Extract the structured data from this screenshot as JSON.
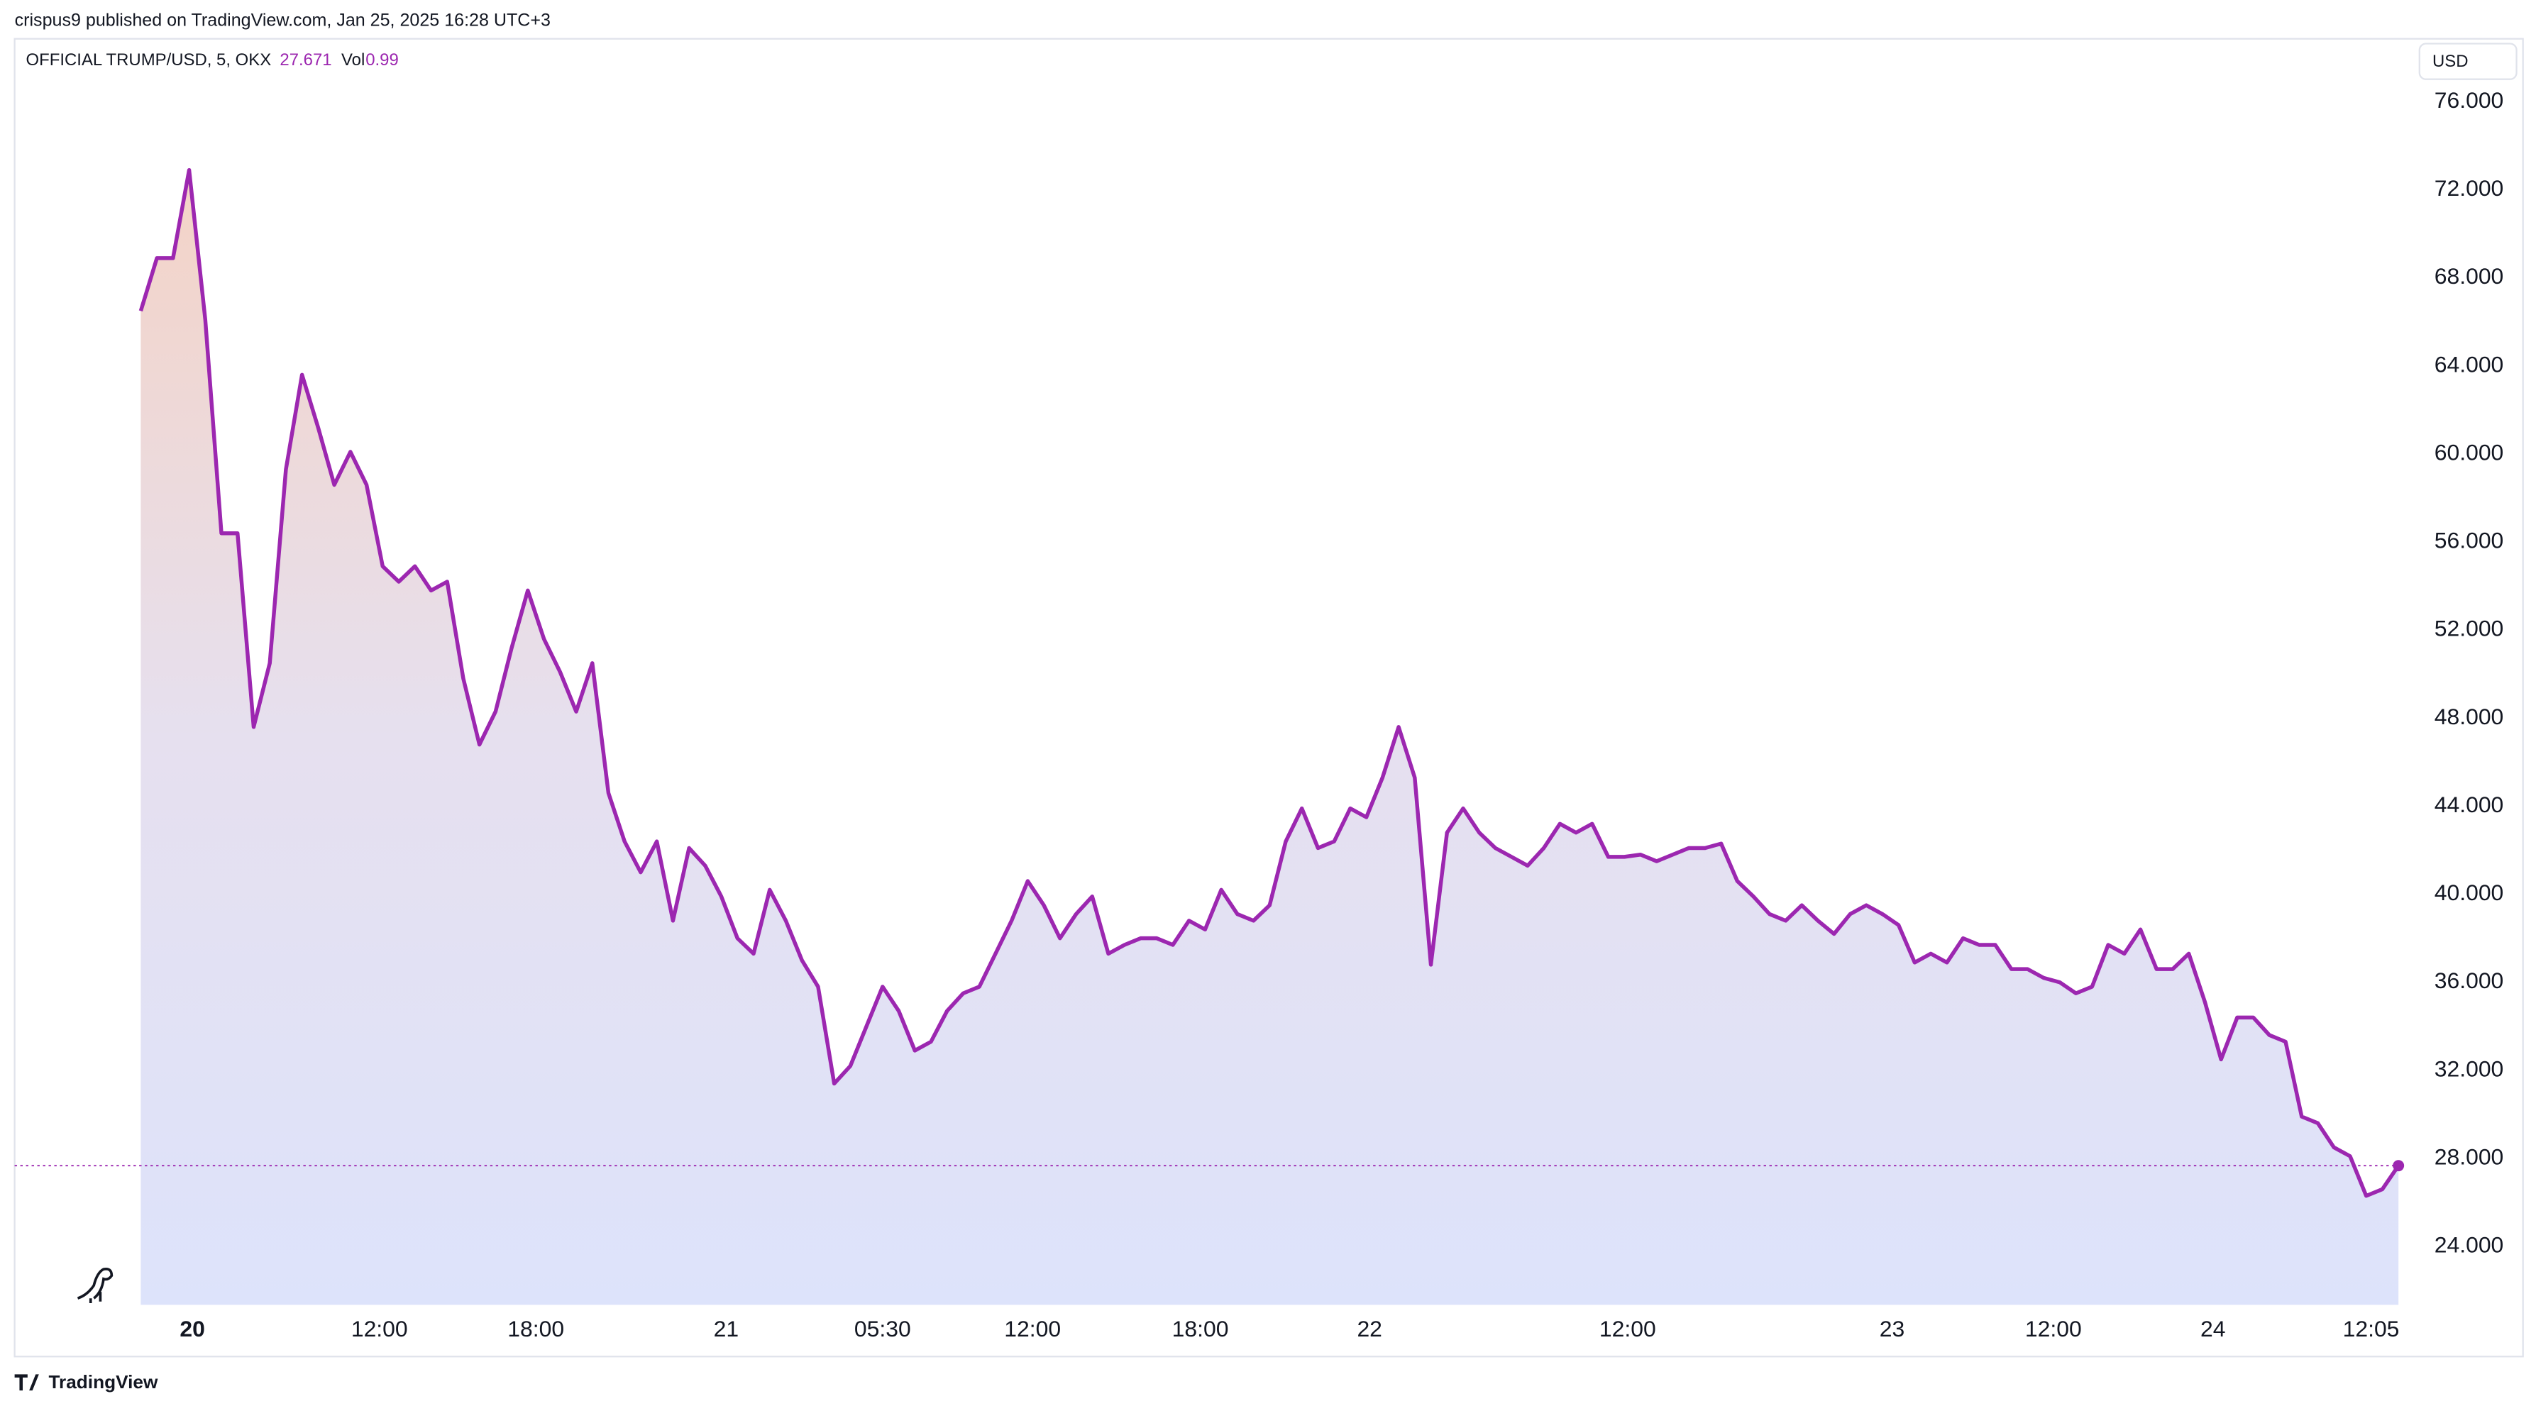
{
  "header": {
    "attribution": "crispus9 published on TradingView.com, Jan 25, 2025 16:28 UTC+3"
  },
  "chart_data": {
    "type": "line",
    "symbol": "OFFICIAL TRUMP/USD, 5, OKX",
    "last_price": 27.671,
    "volume_label": "Vol",
    "volume": 0.99,
    "currency": "USD",
    "series": [
      {
        "name": "OFFICIAL TRUMP/USD",
        "color": "#9c27b0",
        "values": [
          66.5,
          68.9,
          68.9,
          72.9,
          66.1,
          56.4,
          56.4,
          47.6,
          50.5,
          59.3,
          63.6,
          61.2,
          58.6,
          60.1,
          58.6,
          54.9,
          54.2,
          54.9,
          53.8,
          54.2,
          49.8,
          46.8,
          48.3,
          51.2,
          53.8,
          51.6,
          50.1,
          48.3,
          50.5,
          44.6,
          42.4,
          41.0,
          42.4,
          38.8,
          42.1,
          41.3,
          39.9,
          38.0,
          37.3,
          40.2,
          38.8,
          37.0,
          35.8,
          31.4,
          32.2,
          34.0,
          35.8,
          34.7,
          32.9,
          33.3,
          34.7,
          35.5,
          35.8,
          37.3,
          38.8,
          40.6,
          39.5,
          38.0,
          39.1,
          39.9,
          37.3,
          37.7,
          38.0,
          38.0,
          37.7,
          38.8,
          38.4,
          40.2,
          39.1,
          38.8,
          39.5,
          42.4,
          43.9,
          42.1,
          42.4,
          43.9,
          43.5,
          45.3,
          47.6,
          45.3,
          36.8,
          42.8,
          43.9,
          42.8,
          42.1,
          41.7,
          41.3,
          42.1,
          43.2,
          42.8,
          43.2,
          41.7,
          41.7,
          41.8,
          41.5,
          41.8,
          42.1,
          42.1,
          42.3,
          40.6,
          39.9,
          39.1,
          38.8,
          39.5,
          38.8,
          38.2,
          39.1,
          39.5,
          39.1,
          38.6,
          36.9,
          37.3,
          36.9,
          38.0,
          37.7,
          37.7,
          36.6,
          36.6,
          36.2,
          36.0,
          35.5,
          35.8,
          37.7,
          37.3,
          38.4,
          36.6,
          36.6,
          37.3,
          35.1,
          32.5,
          34.4,
          34.4,
          33.6,
          33.3,
          29.9,
          29.6,
          28.5,
          28.1,
          26.3,
          26.6,
          27.671
        ]
      }
    ],
    "xlim": [
      0,
      140
    ],
    "xticks": [
      {
        "value": 3.2,
        "label": "20"
      },
      {
        "value": 14.8,
        "label": "12:00"
      },
      {
        "value": 24.5,
        "label": "18:00"
      },
      {
        "value": 36.3,
        "label": "21"
      },
      {
        "value": 46.0,
        "label": "05:30"
      },
      {
        "value": 55.3,
        "label": "12:00"
      },
      {
        "value": 65.7,
        "label": "18:00"
      },
      {
        "value": 76.2,
        "label": "22"
      },
      {
        "value": 92.2,
        "label": "12:00"
      },
      {
        "value": 108.6,
        "label": "23"
      },
      {
        "value": 118.6,
        "label": "12:00"
      },
      {
        "value": 128.5,
        "label": "24"
      },
      {
        "value": 138.3,
        "label": "12:05"
      }
    ],
    "ylim": [
      21.35,
      78.79
    ],
    "yticks": [
      {
        "value": 24,
        "label": "24.000"
      },
      {
        "value": 28,
        "label": "28.000"
      },
      {
        "value": 32,
        "label": "32.000"
      },
      {
        "value": 36,
        "label": "36.000"
      },
      {
        "value": 40,
        "label": "40.000"
      },
      {
        "value": 44,
        "label": "44.000"
      },
      {
        "value": 48,
        "label": "48.000"
      },
      {
        "value": 52,
        "label": "52.000"
      },
      {
        "value": 56,
        "label": "56.000"
      },
      {
        "value": 60,
        "label": "60.000"
      },
      {
        "value": 64,
        "label": "64.000"
      },
      {
        "value": 68,
        "label": "68.000"
      },
      {
        "value": 72,
        "label": "72.000"
      },
      {
        "value": 76,
        "label": "76.000"
      }
    ],
    "grid": false
  },
  "footer": {
    "brand": "TradingView"
  }
}
